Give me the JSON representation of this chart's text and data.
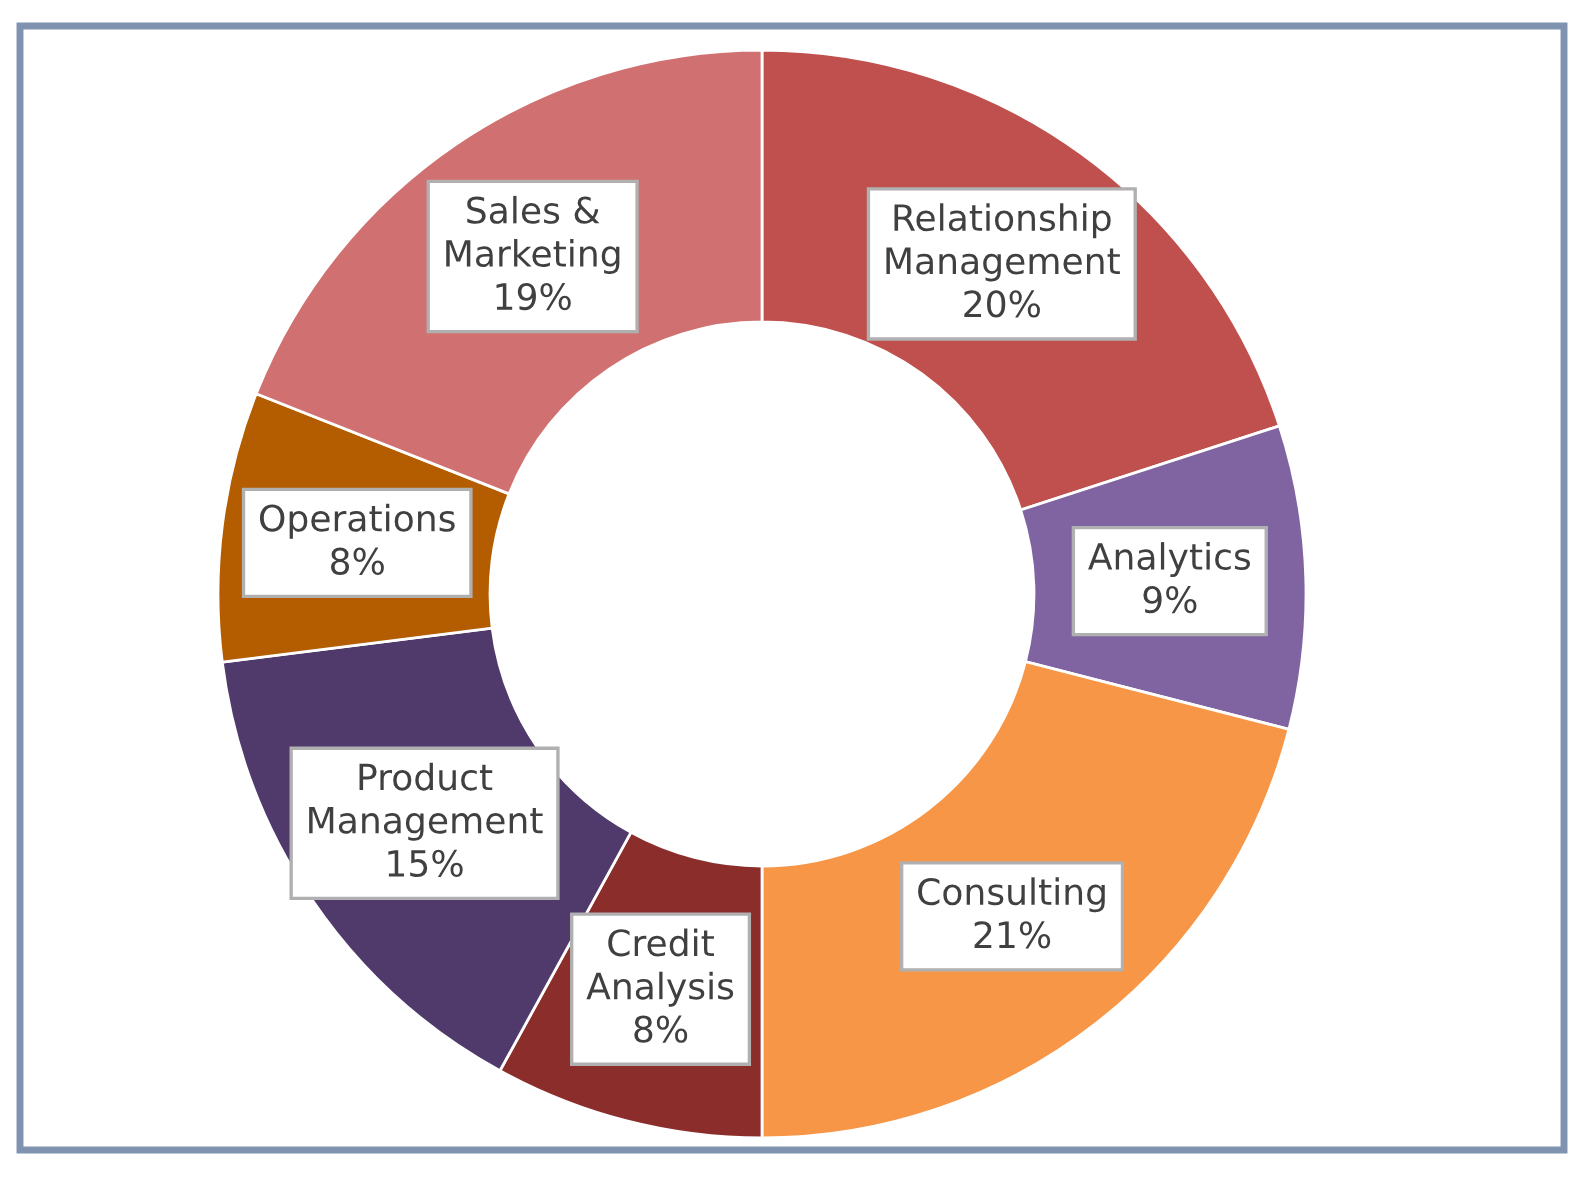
{
  "chart_data": {
    "type": "donut",
    "categories": [
      "Relationship\nManagement",
      "Analytics",
      "Consulting",
      "Credit\nAnalysis",
      "Product\nManagement",
      "Operations",
      "Sales &\nMarketing"
    ],
    "values": [
      20,
      9,
      21,
      8,
      15,
      8,
      19
    ],
    "value_labels": [
      "20%",
      "9%",
      "21%",
      "8%",
      "15%",
      "8%",
      "19%"
    ],
    "colors": [
      "#c0504d",
      "#8064a2",
      "#f79646",
      "#8b2e2b",
      "#4f3a6b",
      "#b35c00",
      "#d07070"
    ],
    "legend": false
  }
}
